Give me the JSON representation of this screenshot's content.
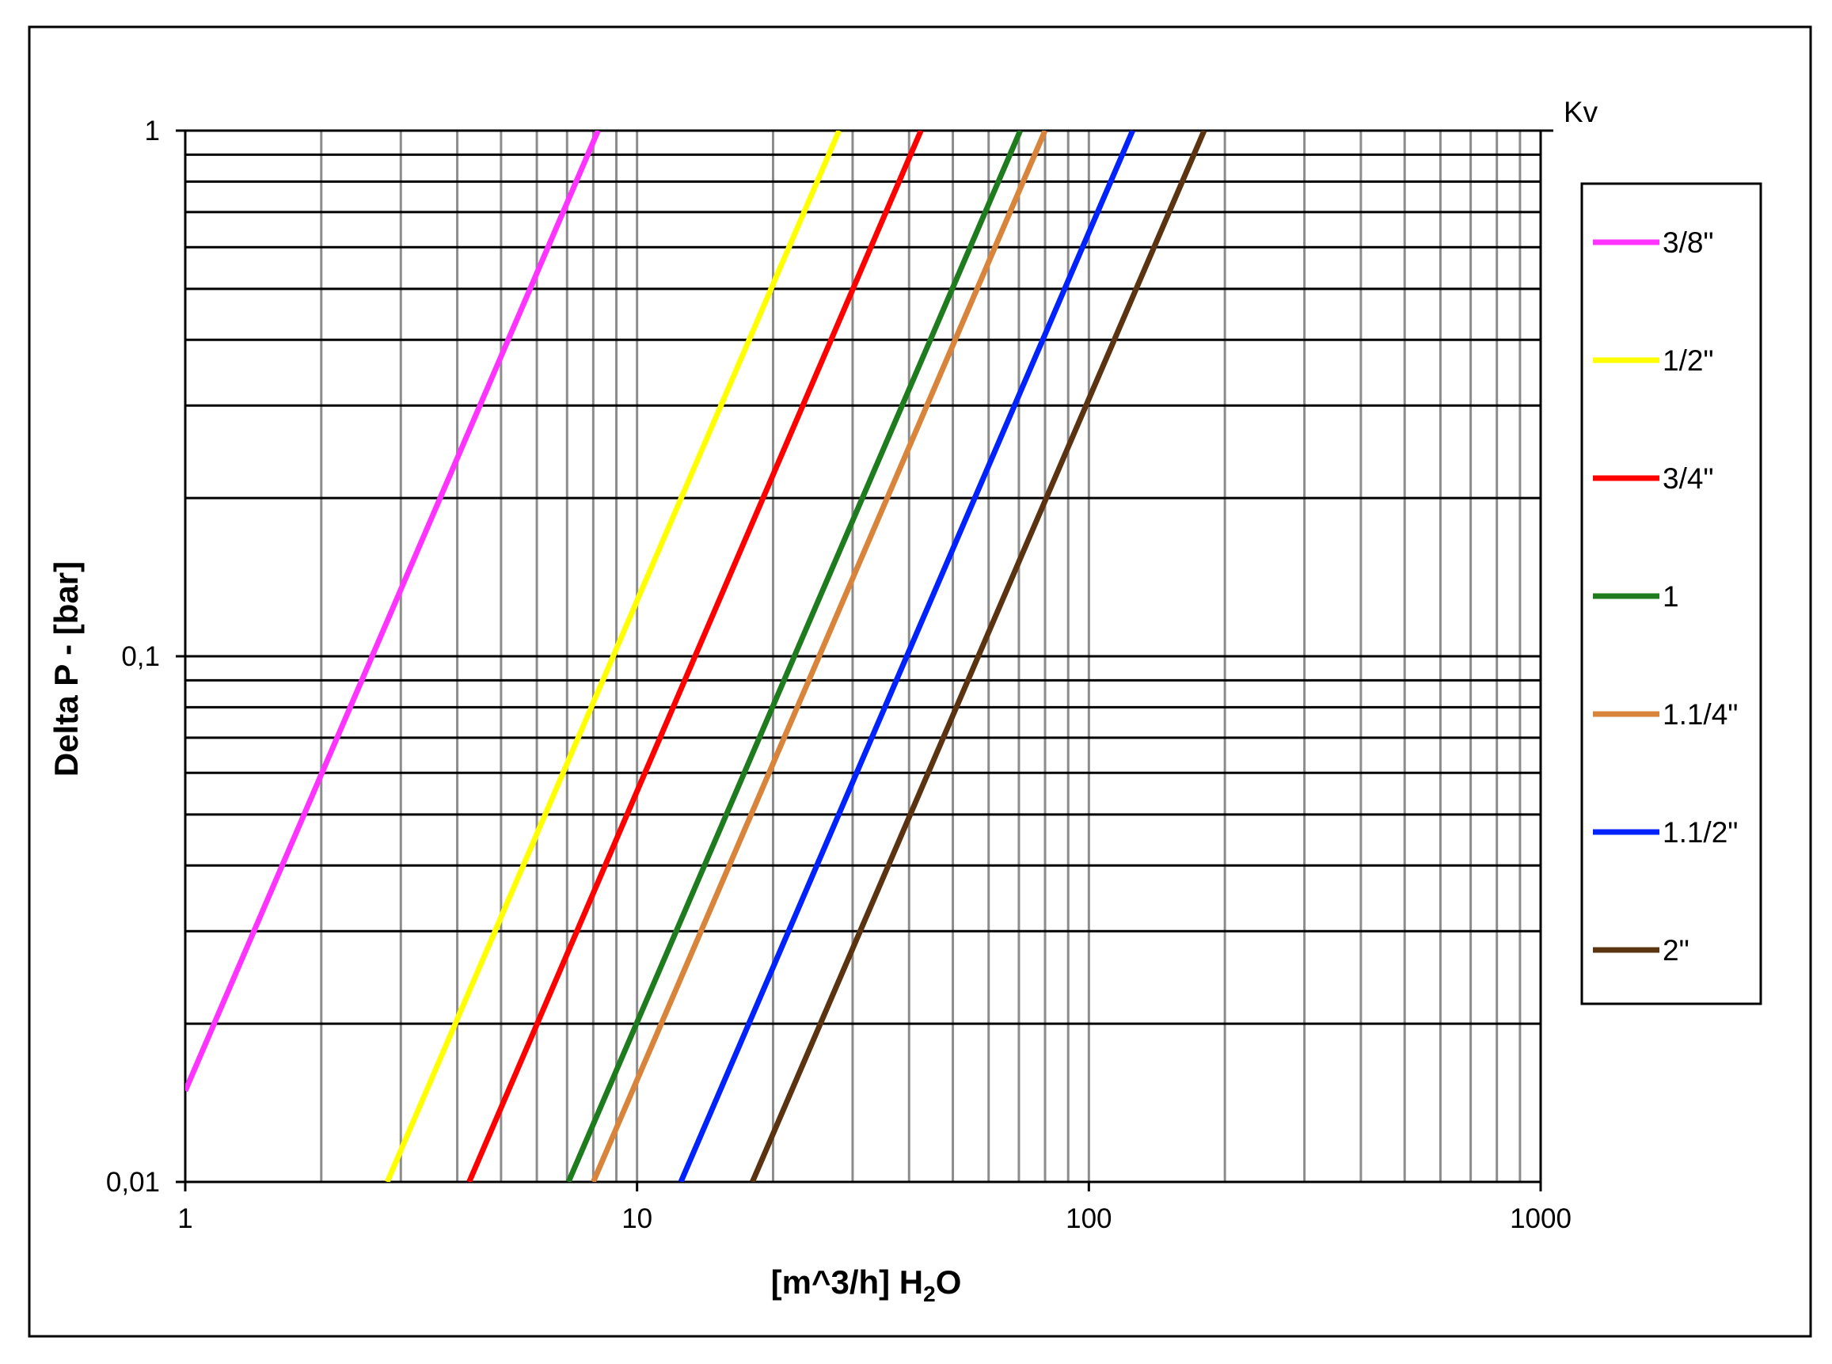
{
  "chart_data": {
    "type": "line",
    "title": "",
    "xlabel": "[m^3/h] H2O",
    "xlabel_parts": {
      "main": "[m^3/h] H",
      "sub": "2",
      "tail": "O"
    },
    "ylabel": "Delta P - [bar]",
    "corner_label": "Kv",
    "xscale": "log",
    "yscale": "log",
    "xlim": [
      1,
      1000
    ],
    "ylim": [
      0.01,
      1
    ],
    "xticks": [
      1,
      10,
      100,
      1000
    ],
    "xtick_labels": [
      "1",
      "10",
      "100",
      "1000"
    ],
    "yticks": [
      0.01,
      0.1,
      1
    ],
    "ytick_labels": [
      "0,01",
      "0,1",
      "1"
    ],
    "grid": true,
    "legend": "right",
    "series": [
      {
        "name": "3/8\"",
        "color": "#ff33ff",
        "kv": 8.2,
        "x": [
          1,
          8.2
        ],
        "y": [
          0.0149,
          1
        ]
      },
      {
        "name": "1/2\"",
        "color": "#ffff00",
        "kv": 28.0,
        "x": [
          2.8,
          28.0
        ],
        "y": [
          0.01,
          1
        ]
      },
      {
        "name": "3/4\"",
        "color": "#ff0000",
        "kv": 42.5,
        "x": [
          4.25,
          42.5
        ],
        "y": [
          0.01,
          1
        ]
      },
      {
        "name": "1",
        "color": "#1e7b1e",
        "kv": 70.5,
        "x": [
          7.05,
          70.5
        ],
        "y": [
          0.01,
          1
        ]
      },
      {
        "name": "1.1/4\"",
        "color": "#d9843b",
        "kv": 80.0,
        "x": [
          8.0,
          80.0
        ],
        "y": [
          0.01,
          1
        ]
      },
      {
        "name": "1.1/2\"",
        "color": "#0022ff",
        "kv": 125.0,
        "x": [
          12.5,
          125.0
        ],
        "y": [
          0.01,
          1
        ]
      },
      {
        "name": "2\"",
        "color": "#5c3311",
        "kv": 180.0,
        "x": [
          18.0,
          180.0
        ],
        "y": [
          0.01,
          1
        ]
      }
    ]
  }
}
